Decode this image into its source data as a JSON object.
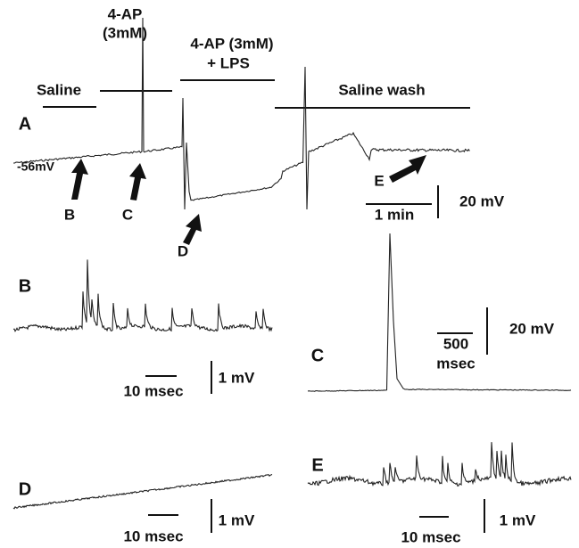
{
  "top_labels": {
    "four_ap": "4-AP",
    "four_ap_conc": "(3mM)",
    "four_ap_lps": "4-AP (3mM)",
    "lps": "+ LPS",
    "saline": "Saline",
    "saline_wash": "Saline wash"
  },
  "panel_a": {
    "label": "A",
    "resting": "-56mV",
    "arrows": [
      "B",
      "C",
      "D",
      "E"
    ],
    "time_scale": "1 min",
    "voltage_scale": "20 mV"
  },
  "panel_b": {
    "label": "B",
    "time_scale": "10 msec",
    "voltage_scale": "1 mV"
  },
  "panel_c": {
    "label": "C",
    "time_scale_1": "500",
    "time_scale_2": "msec",
    "voltage_scale": "20 mV"
  },
  "panel_d": {
    "label": "D",
    "time_scale": "10 msec",
    "voltage_scale": "1 mV"
  },
  "panel_e": {
    "label": "E",
    "time_scale": "10 msec",
    "voltage_scale": "1 mV"
  }
}
